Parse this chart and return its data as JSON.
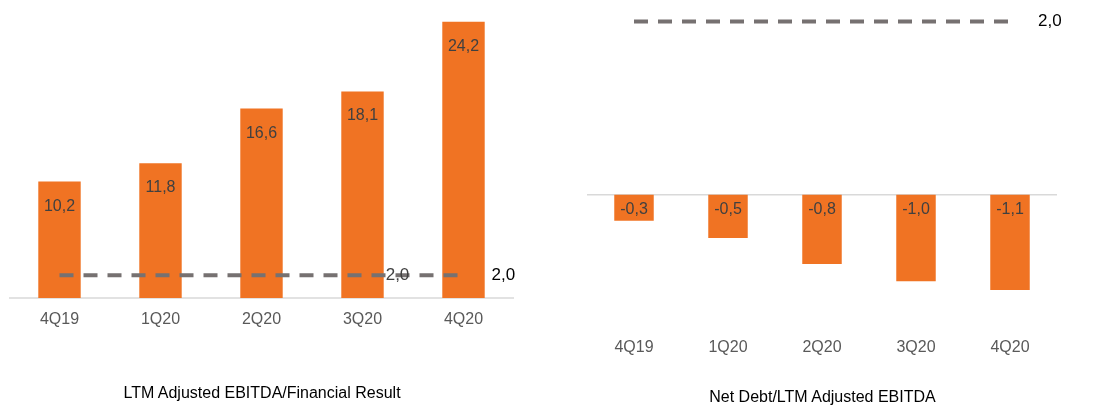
{
  "chart_data": [
    {
      "type": "bar",
      "xlabel": "LTM Adjusted EBITDA/Financial Result",
      "categories": [
        "4Q19",
        "1Q20",
        "2Q20",
        "3Q20",
        "4Q20"
      ],
      "values": [
        10.2,
        11.8,
        16.6,
        18.1,
        24.2
      ],
      "value_labels": [
        "10,2",
        "11,8",
        "16,6",
        "18,1",
        "24,2"
      ],
      "color": "#f07323",
      "ref_lines": [
        {
          "axis": "y",
          "value": 2.0,
          "label": "2,0",
          "color": "#767171",
          "line_style": "dashed"
        }
      ],
      "annotations": [
        "2,0"
      ]
    },
    {
      "type": "bar",
      "xlabel": "Net Debt/LTM Adjusted EBITDA",
      "categories": [
        "4Q19",
        "1Q20",
        "2Q20",
        "3Q20",
        "4Q20"
      ],
      "values": [
        -0.3,
        -0.5,
        -0.8,
        -1.0,
        -1.1
      ],
      "value_labels": [
        "-0,3",
        "-0,5",
        "-0,8",
        "-1,0",
        "-1,1"
      ],
      "color": "#f07323",
      "ref_lines": [
        {
          "axis": "y",
          "value": 2.0,
          "label": "2,0",
          "color": "#767171",
          "line_style": "dashed"
        }
      ]
    }
  ]
}
